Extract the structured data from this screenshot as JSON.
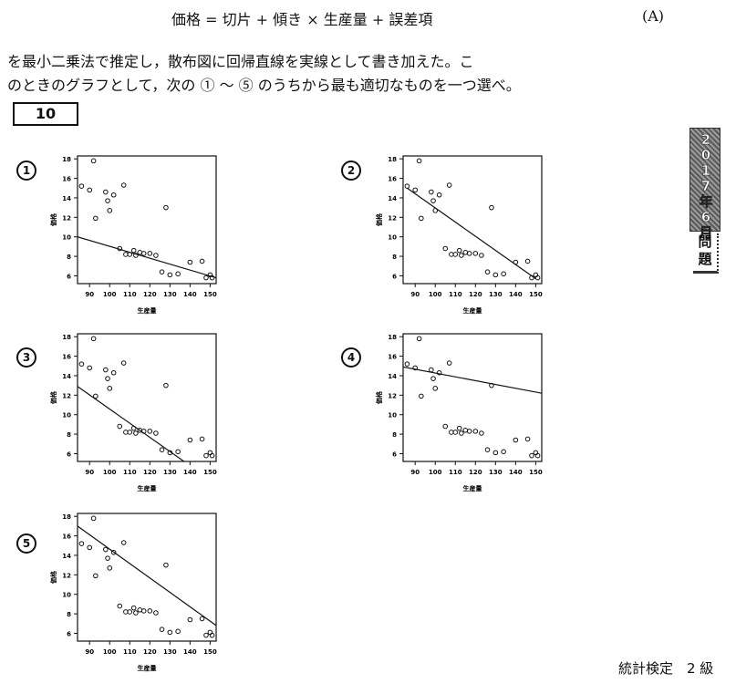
{
  "formula": "価格 = 切片 + 傾き × 生産量 + 誤差項",
  "formula_label": "(A)",
  "paragraph": [
    "を最小二乗法で推定し，散布図に回帰直線を実線として書き加えた。こ",
    "のときのグラフとして，次の ① ～ ⑤ のうちから最も適切なものを一つ選べ。"
  ],
  "question_number": "10",
  "side_tab": {
    "year_chars": [
      "2",
      "0",
      "1",
      "7",
      "年",
      "6",
      "月"
    ],
    "label_chars": [
      "問",
      "題"
    ]
  },
  "footer": "統計検定　2 級",
  "chart_data": [
    {
      "type": "scatter",
      "option": "①",
      "xlabel": "生産量",
      "ylabel": "価格",
      "xlim": [
        84,
        153
      ],
      "ylim": [
        5.2,
        18.3
      ],
      "xticks": [
        90,
        100,
        110,
        120,
        130,
        140,
        150
      ],
      "yticks": [
        6,
        8,
        10,
        12,
        14,
        16,
        18
      ],
      "points": [
        [
          86,
          15.2
        ],
        [
          90,
          14.8
        ],
        [
          92,
          17.8
        ],
        [
          93,
          11.9
        ],
        [
          98,
          14.6
        ],
        [
          99,
          13.7
        ],
        [
          100,
          12.7
        ],
        [
          102,
          14.3
        ],
        [
          105,
          8.8
        ],
        [
          107,
          15.3
        ],
        [
          108,
          8.2
        ],
        [
          110,
          8.2
        ],
        [
          112,
          8.6
        ],
        [
          113,
          8.1
        ],
        [
          115,
          8.4
        ],
        [
          117,
          8.3
        ],
        [
          120,
          8.3
        ],
        [
          123,
          8.1
        ],
        [
          126,
          6.4
        ],
        [
          128,
          13.0
        ],
        [
          130,
          6.1
        ],
        [
          134,
          6.2
        ],
        [
          140,
          7.4
        ],
        [
          146,
          7.5
        ],
        [
          148,
          5.8
        ],
        [
          150,
          6.1
        ],
        [
          151,
          5.8
        ]
      ],
      "line": [
        [
          84,
          10.0
        ],
        [
          153,
          5.8
        ]
      ]
    },
    {
      "type": "scatter",
      "option": "②",
      "xlabel": "生産量",
      "ylabel": "価格",
      "xlim": [
        84,
        153
      ],
      "ylim": [
        5.2,
        18.3
      ],
      "xticks": [
        90,
        100,
        110,
        120,
        130,
        140,
        150
      ],
      "yticks": [
        6,
        8,
        10,
        12,
        14,
        16,
        18
      ],
      "points": [
        [
          86,
          15.2
        ],
        [
          90,
          14.8
        ],
        [
          92,
          17.8
        ],
        [
          93,
          11.9
        ],
        [
          98,
          14.6
        ],
        [
          99,
          13.7
        ],
        [
          100,
          12.7
        ],
        [
          102,
          14.3
        ],
        [
          105,
          8.8
        ],
        [
          107,
          15.3
        ],
        [
          108,
          8.2
        ],
        [
          110,
          8.2
        ],
        [
          112,
          8.6
        ],
        [
          113,
          8.1
        ],
        [
          115,
          8.4
        ],
        [
          117,
          8.3
        ],
        [
          120,
          8.3
        ],
        [
          123,
          8.1
        ],
        [
          126,
          6.4
        ],
        [
          128,
          13.0
        ],
        [
          130,
          6.1
        ],
        [
          134,
          6.2
        ],
        [
          140,
          7.4
        ],
        [
          146,
          7.5
        ],
        [
          148,
          5.8
        ],
        [
          150,
          6.1
        ],
        [
          151,
          5.8
        ]
      ],
      "line": [
        [
          86,
          15.0
        ],
        [
          150,
          5.7
        ]
      ]
    },
    {
      "type": "scatter",
      "option": "③",
      "xlabel": "生産量",
      "ylabel": "価格",
      "xlim": [
        84,
        153
      ],
      "ylim": [
        5.2,
        18.3
      ],
      "xticks": [
        90,
        100,
        110,
        120,
        130,
        140,
        150
      ],
      "yticks": [
        6,
        8,
        10,
        12,
        14,
        16,
        18
      ],
      "points": [
        [
          86,
          15.2
        ],
        [
          90,
          14.8
        ],
        [
          92,
          17.8
        ],
        [
          93,
          11.9
        ],
        [
          98,
          14.6
        ],
        [
          99,
          13.7
        ],
        [
          100,
          12.7
        ],
        [
          102,
          14.3
        ],
        [
          105,
          8.8
        ],
        [
          107,
          15.3
        ],
        [
          108,
          8.2
        ],
        [
          110,
          8.2
        ],
        [
          112,
          8.6
        ],
        [
          113,
          8.1
        ],
        [
          115,
          8.4
        ],
        [
          117,
          8.3
        ],
        [
          120,
          8.3
        ],
        [
          123,
          8.1
        ],
        [
          126,
          6.4
        ],
        [
          128,
          13.0
        ],
        [
          130,
          6.1
        ],
        [
          134,
          6.2
        ],
        [
          140,
          7.4
        ],
        [
          146,
          7.5
        ],
        [
          148,
          5.8
        ],
        [
          150,
          6.1
        ],
        [
          151,
          5.8
        ]
      ],
      "line": [
        [
          84,
          12.9
        ],
        [
          137,
          5.2
        ]
      ]
    },
    {
      "type": "scatter",
      "option": "④",
      "xlabel": "生産量",
      "ylabel": "価格",
      "xlim": [
        84,
        153
      ],
      "ylim": [
        5.2,
        18.3
      ],
      "xticks": [
        90,
        100,
        110,
        120,
        130,
        140,
        150
      ],
      "yticks": [
        6,
        8,
        10,
        12,
        14,
        16,
        18
      ],
      "points": [
        [
          86,
          15.2
        ],
        [
          90,
          14.8
        ],
        [
          92,
          17.8
        ],
        [
          93,
          11.9
        ],
        [
          98,
          14.6
        ],
        [
          99,
          13.7
        ],
        [
          100,
          12.7
        ],
        [
          102,
          14.3
        ],
        [
          105,
          8.8
        ],
        [
          107,
          15.3
        ],
        [
          108,
          8.2
        ],
        [
          110,
          8.2
        ],
        [
          112,
          8.6
        ],
        [
          113,
          8.1
        ],
        [
          115,
          8.4
        ],
        [
          117,
          8.3
        ],
        [
          120,
          8.3
        ],
        [
          123,
          8.1
        ],
        [
          126,
          6.4
        ],
        [
          128,
          13.0
        ],
        [
          130,
          6.1
        ],
        [
          134,
          6.2
        ],
        [
          140,
          7.4
        ],
        [
          146,
          7.5
        ],
        [
          148,
          5.8
        ],
        [
          150,
          6.1
        ],
        [
          151,
          5.8
        ]
      ],
      "line": [
        [
          84,
          14.9
        ],
        [
          153,
          12.2
        ]
      ]
    },
    {
      "type": "scatter",
      "option": "⑤",
      "xlabel": "生産量",
      "ylabel": "価格",
      "xlim": [
        84,
        153
      ],
      "ylim": [
        5.2,
        18.3
      ],
      "xticks": [
        90,
        100,
        110,
        120,
        130,
        140,
        150
      ],
      "yticks": [
        6,
        8,
        10,
        12,
        14,
        16,
        18
      ],
      "points": [
        [
          86,
          15.2
        ],
        [
          90,
          14.8
        ],
        [
          92,
          17.8
        ],
        [
          93,
          11.9
        ],
        [
          98,
          14.6
        ],
        [
          99,
          13.7
        ],
        [
          100,
          12.7
        ],
        [
          102,
          14.3
        ],
        [
          105,
          8.8
        ],
        [
          107,
          15.3
        ],
        [
          108,
          8.2
        ],
        [
          110,
          8.2
        ],
        [
          112,
          8.6
        ],
        [
          113,
          8.1
        ],
        [
          115,
          8.4
        ],
        [
          117,
          8.3
        ],
        [
          120,
          8.3
        ],
        [
          123,
          8.1
        ],
        [
          126,
          6.4
        ],
        [
          128,
          13.0
        ],
        [
          130,
          6.1
        ],
        [
          134,
          6.2
        ],
        [
          140,
          7.4
        ],
        [
          146,
          7.5
        ],
        [
          148,
          5.8
        ],
        [
          150,
          6.1
        ],
        [
          151,
          5.8
        ]
      ],
      "line": [
        [
          84,
          17.0
        ],
        [
          153,
          6.8
        ]
      ]
    }
  ]
}
